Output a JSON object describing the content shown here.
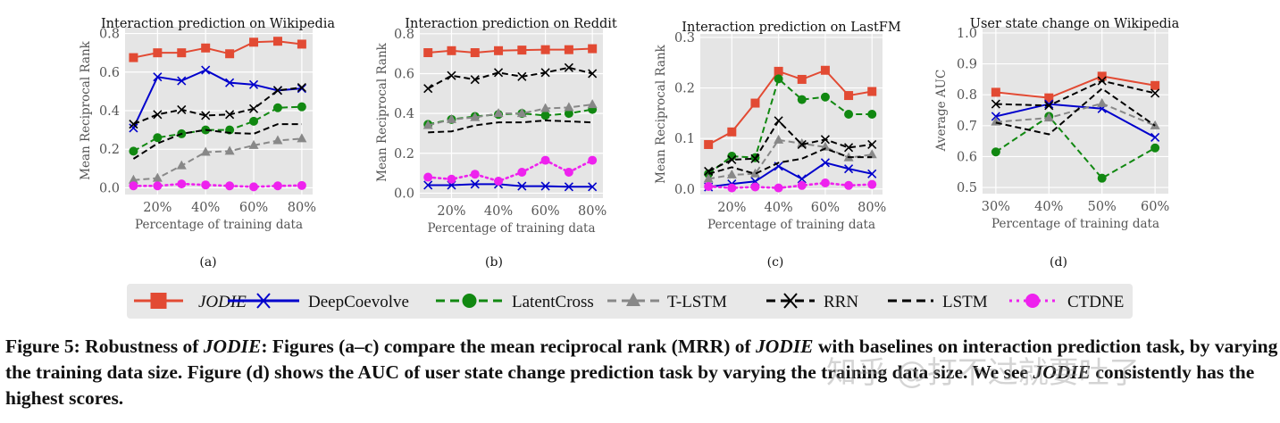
{
  "chart_data": [
    {
      "type": "line",
      "panel_label": "(a)",
      "title": "Interaction prediction on Wikipedia",
      "xlabel": "Percentage of training data",
      "ylabel": "Mean Reciprocal Rank",
      "x": [
        10,
        20,
        30,
        40,
        50,
        60,
        70,
        80
      ],
      "xticks": [
        20,
        40,
        60,
        80
      ],
      "xtick_labels": [
        "20%",
        "40%",
        "60%",
        "80%"
      ],
      "yticks": [
        0,
        0.2,
        0.4,
        0.6,
        0.8
      ],
      "ytick_labels": [
        "0.0",
        "0.2",
        "0.4",
        "0.6",
        "0.8"
      ],
      "xlim": [
        6.5,
        84.5
      ],
      "ylim": [
        -0.035,
        0.835
      ],
      "grid": true,
      "series": [
        {
          "name": "JODIE",
          "values": [
            0.675,
            0.7,
            0.7,
            0.725,
            0.695,
            0.755,
            0.76,
            0.745
          ]
        },
        {
          "name": "DeepCoevolve",
          "values": [
            0.31,
            0.575,
            0.555,
            0.61,
            0.545,
            0.535,
            0.505,
            0.515
          ]
        },
        {
          "name": "LatentCross",
          "values": [
            0.19,
            0.26,
            0.28,
            0.3,
            0.3,
            0.345,
            0.415,
            0.42
          ]
        },
        {
          "name": "T-LSTM",
          "values": [
            0.04,
            0.05,
            0.115,
            0.185,
            0.19,
            0.22,
            0.245,
            0.255
          ]
        },
        {
          "name": "RRN",
          "values": [
            0.33,
            0.38,
            0.405,
            0.375,
            0.38,
            0.41,
            0.505,
            0.52
          ]
        },
        {
          "name": "LSTM",
          "values": [
            0.15,
            0.23,
            0.28,
            0.3,
            0.285,
            0.28,
            0.33,
            0.33
          ]
        },
        {
          "name": "CTDNE",
          "values": [
            0.01,
            0.01,
            0.02,
            0.015,
            0.01,
            0.005,
            0.01,
            0.012
          ]
        }
      ]
    },
    {
      "type": "line",
      "panel_label": "(b)",
      "title": "Interaction prediction on Reddit",
      "xlabel": "Percentage of training data",
      "ylabel": "Mean Reciprocal Rank",
      "x": [
        10,
        20,
        30,
        40,
        50,
        60,
        70,
        80
      ],
      "xticks": [
        20,
        40,
        60,
        80
      ],
      "xtick_labels": [
        "20%",
        "40%",
        "60%",
        "80%"
      ],
      "yticks": [
        0,
        0.2,
        0.4,
        0.6,
        0.8
      ],
      "ytick_labels": [
        "0.0",
        "0.2",
        "0.4",
        "0.6",
        "0.8"
      ],
      "xlim": [
        6.5,
        84.5
      ],
      "ylim": [
        -0.025,
        0.835
      ],
      "grid": true,
      "series": [
        {
          "name": "JODIE",
          "values": [
            0.705,
            0.715,
            0.705,
            0.715,
            0.718,
            0.72,
            0.72,
            0.725
          ]
        },
        {
          "name": "DeepCoevolve",
          "values": [
            0.04,
            0.04,
            0.045,
            0.045,
            0.035,
            0.035,
            0.032,
            0.032
          ]
        },
        {
          "name": "LatentCross",
          "values": [
            0.345,
            0.37,
            0.385,
            0.395,
            0.4,
            0.39,
            0.4,
            0.42
          ]
        },
        {
          "name": "T-LSTM",
          "values": [
            0.34,
            0.37,
            0.38,
            0.4,
            0.4,
            0.425,
            0.43,
            0.445
          ]
        },
        {
          "name": "RRN",
          "values": [
            0.525,
            0.59,
            0.57,
            0.605,
            0.585,
            0.605,
            0.63,
            0.6
          ]
        },
        {
          "name": "LSTM",
          "values": [
            0.305,
            0.31,
            0.34,
            0.355,
            0.355,
            0.365,
            0.36,
            0.355
          ]
        },
        {
          "name": "CTDNE",
          "values": [
            0.08,
            0.07,
            0.095,
            0.06,
            0.105,
            0.165,
            0.105,
            0.165
          ]
        }
      ]
    },
    {
      "type": "line",
      "panel_label": "(c)",
      "title": "Interaction prediction on LastFM",
      "xlabel": "Percentage of training data",
      "ylabel": "Mean Reciprocal Rank",
      "x": [
        10,
        20,
        30,
        40,
        50,
        60,
        70,
        80
      ],
      "xticks": [
        20,
        40,
        60,
        80
      ],
      "xtick_labels": [
        "20%",
        "40%",
        "60%",
        "80%"
      ],
      "yticks": [
        0,
        0.1,
        0.2,
        0.3
      ],
      "ytick_labels": [
        "0.0",
        "0.1",
        "0.2",
        "0.3"
      ],
      "xlim": [
        6.5,
        84.5
      ],
      "ylim": [
        -0.011,
        0.307
      ],
      "grid": true,
      "series": [
        {
          "name": "JODIE",
          "values": [
            0.088,
            0.113,
            0.17,
            0.233,
            0.217,
            0.235,
            0.185,
            0.193
          ]
        },
        {
          "name": "DeepCoevolve",
          "values": [
            0.004,
            0.01,
            0.015,
            0.045,
            0.02,
            0.052,
            0.04,
            0.03
          ]
        },
        {
          "name": "LatentCross",
          "values": [
            0.03,
            0.065,
            0.062,
            0.218,
            0.177,
            0.182,
            0.148,
            0.148
          ]
        },
        {
          "name": "T-LSTM",
          "values": [
            0.02,
            0.028,
            0.03,
            0.097,
            0.09,
            0.083,
            0.062,
            0.068
          ]
        },
        {
          "name": "RRN",
          "values": [
            0.035,
            0.058,
            0.06,
            0.135,
            0.088,
            0.098,
            0.082,
            0.088
          ]
        },
        {
          "name": "LSTM",
          "values": [
            0.03,
            0.043,
            0.03,
            0.052,
            0.06,
            0.08,
            0.063,
            0.063
          ]
        },
        {
          "name": "CTDNE",
          "values": [
            0.005,
            0.002,
            0.004,
            0.002,
            0.007,
            0.012,
            0.007,
            0.009
          ]
        }
      ]
    },
    {
      "type": "line",
      "panel_label": "(d)",
      "title": "User state change on Wikipedia",
      "xlabel": "Percentage of training data",
      "ylabel": "Average AUC",
      "x": [
        30,
        40,
        50,
        60
      ],
      "xticks": [
        30,
        40,
        50,
        60
      ],
      "xtick_labels": [
        "30%",
        "40%",
        "50%",
        "60%"
      ],
      "yticks": [
        0.5,
        0.6,
        0.7,
        0.8,
        0.9,
        1.0
      ],
      "ytick_labels": [
        "0.5",
        "0.6",
        "0.7",
        "0.8",
        "0.9",
        "1.0"
      ],
      "xlim": [
        27.5,
        62.5
      ],
      "ylim": [
        0.48,
        1.02
      ],
      "grid": true,
      "series": [
        {
          "name": "JODIE",
          "values": [
            0.808,
            0.79,
            0.86,
            0.83
          ]
        },
        {
          "name": "DeepCoevolve",
          "values": [
            0.73,
            0.77,
            0.755,
            0.662
          ]
        },
        {
          "name": "LatentCross",
          "values": [
            0.615,
            0.73,
            0.53,
            0.628
          ]
        },
        {
          "name": "T-LSTM",
          "values": [
            0.712,
            0.725,
            0.772,
            0.7
          ]
        },
        {
          "name": "RRN",
          "values": [
            0.77,
            0.765,
            0.845,
            0.805
          ]
        },
        {
          "name": "LSTM",
          "values": [
            0.71,
            0.672,
            0.82,
            0.7
          ]
        }
      ]
    }
  ],
  "legend": {
    "placement": "bottom",
    "items": [
      {
        "name": "JODIE",
        "color": "#e24a33",
        "style": "solid",
        "marker": "square",
        "italic": true
      },
      {
        "name": "DeepCoevolve",
        "color": "#0000cc",
        "style": "solid",
        "marker": "x"
      },
      {
        "name": "LatentCross",
        "color": "#118811",
        "style": "dashed",
        "marker": "circle"
      },
      {
        "name": "T-LSTM",
        "color": "#888888",
        "style": "dashed",
        "marker": "triangle"
      },
      {
        "name": "RRN",
        "color": "#000000",
        "style": "dashed",
        "marker": "x"
      },
      {
        "name": "LSTM",
        "color": "#000000",
        "style": "dashed",
        "marker": "none"
      },
      {
        "name": "CTDNE",
        "color": "#ee22ee",
        "style": "dotted",
        "marker": "circle"
      }
    ]
  },
  "caption": {
    "label": "Figure 5: Robustness of ",
    "jodie": "JODIE",
    "p1": ": Figures (a–c) compare the mean reciprocal rank (MRR) of ",
    "p2": " with baselines on interaction prediction task, by varying the training data size. Figure (d) shows the AUC of user state change prediction task by varying the training data size. We see ",
    "p3": " consistently has the highest scores."
  },
  "watermark": "知乎 @打不过就要吐了"
}
